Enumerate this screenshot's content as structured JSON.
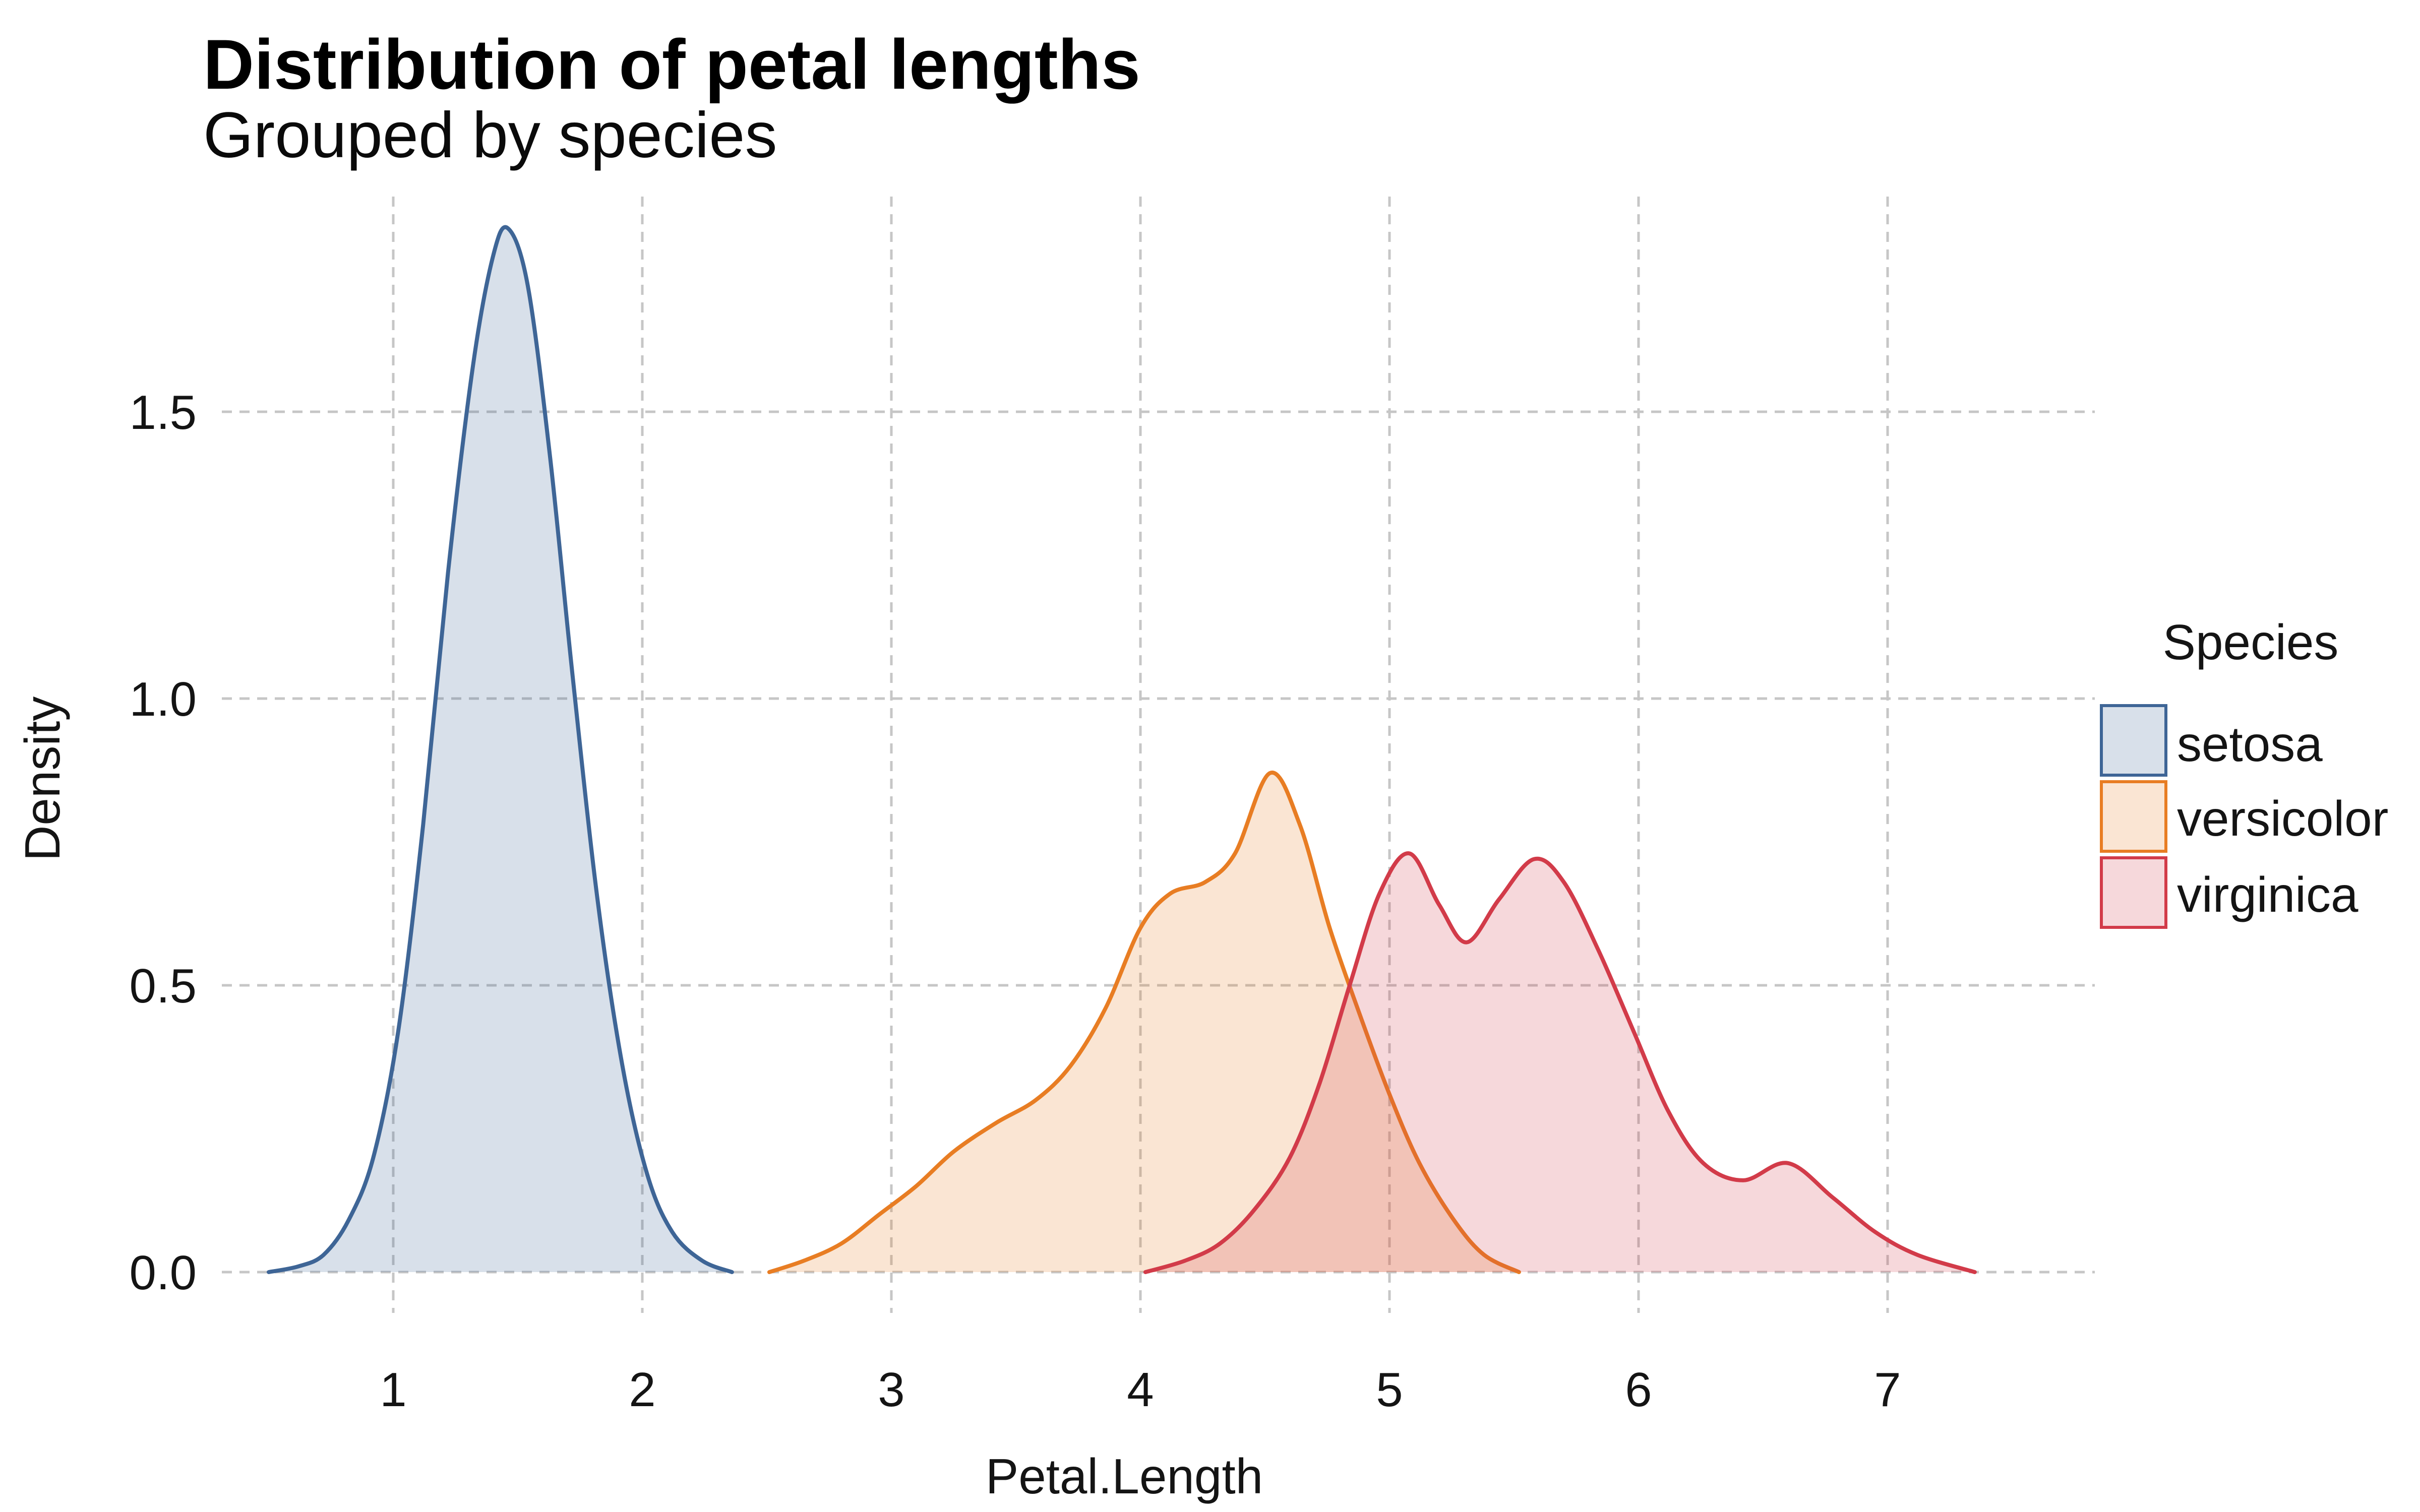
{
  "title": "Distribution of petal lengths",
  "subtitle": "Grouped by species",
  "chart_data": {
    "type": "area",
    "title": "Distribution of petal lengths",
    "subtitle": "Grouped by species",
    "xlabel": "Petal.Length",
    "ylabel": "Density",
    "legend_title": "Species",
    "legend_position": "right",
    "grid": "dashed",
    "grid_color": "#C6C6C6",
    "background": "#FFFFFF",
    "x_ticks": [
      1,
      2,
      3,
      4,
      5,
      6,
      7
    ],
    "y_ticks": [
      {
        "v": 0,
        "label": "0.0"
      },
      {
        "v": 0.5,
        "label": "0.5"
      },
      {
        "v": 1,
        "label": "1.0"
      },
      {
        "v": 1.5,
        "label": "1.5"
      }
    ],
    "xlim": [
      0.31,
      7.83
    ],
    "ylim": [
      -0.08,
      1.88
    ],
    "fill_opacity": 0.2,
    "series": [
      {
        "name": "setosa",
        "color": "#3E6596",
        "points": [
          [
            0.5,
            0.0
          ],
          [
            0.62,
            0.01
          ],
          [
            0.72,
            0.03
          ],
          [
            0.82,
            0.09
          ],
          [
            0.92,
            0.2
          ],
          [
            1.02,
            0.42
          ],
          [
            1.12,
            0.78
          ],
          [
            1.22,
            1.22
          ],
          [
            1.32,
            1.58
          ],
          [
            1.4,
            1.77
          ],
          [
            1.46,
            1.82
          ],
          [
            1.54,
            1.72
          ],
          [
            1.63,
            1.42
          ],
          [
            1.72,
            1.04
          ],
          [
            1.82,
            0.65
          ],
          [
            1.92,
            0.36
          ],
          [
            2.02,
            0.17
          ],
          [
            2.12,
            0.07
          ],
          [
            2.24,
            0.02
          ],
          [
            2.36,
            0.0
          ]
        ]
      },
      {
        "name": "versicolor",
        "color": "#E87D23",
        "points": [
          [
            2.51,
            0.0
          ],
          [
            2.65,
            0.02
          ],
          [
            2.8,
            0.05
          ],
          [
            2.95,
            0.1
          ],
          [
            3.1,
            0.15
          ],
          [
            3.25,
            0.21
          ],
          [
            3.42,
            0.26
          ],
          [
            3.58,
            0.3
          ],
          [
            3.72,
            0.36
          ],
          [
            3.86,
            0.46
          ],
          [
            4.0,
            0.6
          ],
          [
            4.12,
            0.66
          ],
          [
            4.26,
            0.68
          ],
          [
            4.38,
            0.73
          ],
          [
            4.52,
            0.87
          ],
          [
            4.64,
            0.78
          ],
          [
            4.76,
            0.6
          ],
          [
            4.88,
            0.45
          ],
          [
            5.0,
            0.31
          ],
          [
            5.12,
            0.19
          ],
          [
            5.26,
            0.09
          ],
          [
            5.38,
            0.03
          ],
          [
            5.52,
            0.0
          ]
        ]
      },
      {
        "name": "virginica",
        "color": "#D23B49",
        "points": [
          [
            4.02,
            0.0
          ],
          [
            4.18,
            0.02
          ],
          [
            4.32,
            0.05
          ],
          [
            4.46,
            0.11
          ],
          [
            4.6,
            0.2
          ],
          [
            4.72,
            0.33
          ],
          [
            4.84,
            0.5
          ],
          [
            4.96,
            0.66
          ],
          [
            5.08,
            0.73
          ],
          [
            5.2,
            0.64
          ],
          [
            5.31,
            0.575
          ],
          [
            5.44,
            0.65
          ],
          [
            5.58,
            0.72
          ],
          [
            5.7,
            0.68
          ],
          [
            5.84,
            0.56
          ],
          [
            5.98,
            0.42
          ],
          [
            6.12,
            0.28
          ],
          [
            6.26,
            0.19
          ],
          [
            6.42,
            0.16
          ],
          [
            6.6,
            0.19
          ],
          [
            6.78,
            0.13
          ],
          [
            6.95,
            0.07
          ],
          [
            7.12,
            0.03
          ],
          [
            7.35,
            0.0
          ]
        ]
      }
    ]
  }
}
